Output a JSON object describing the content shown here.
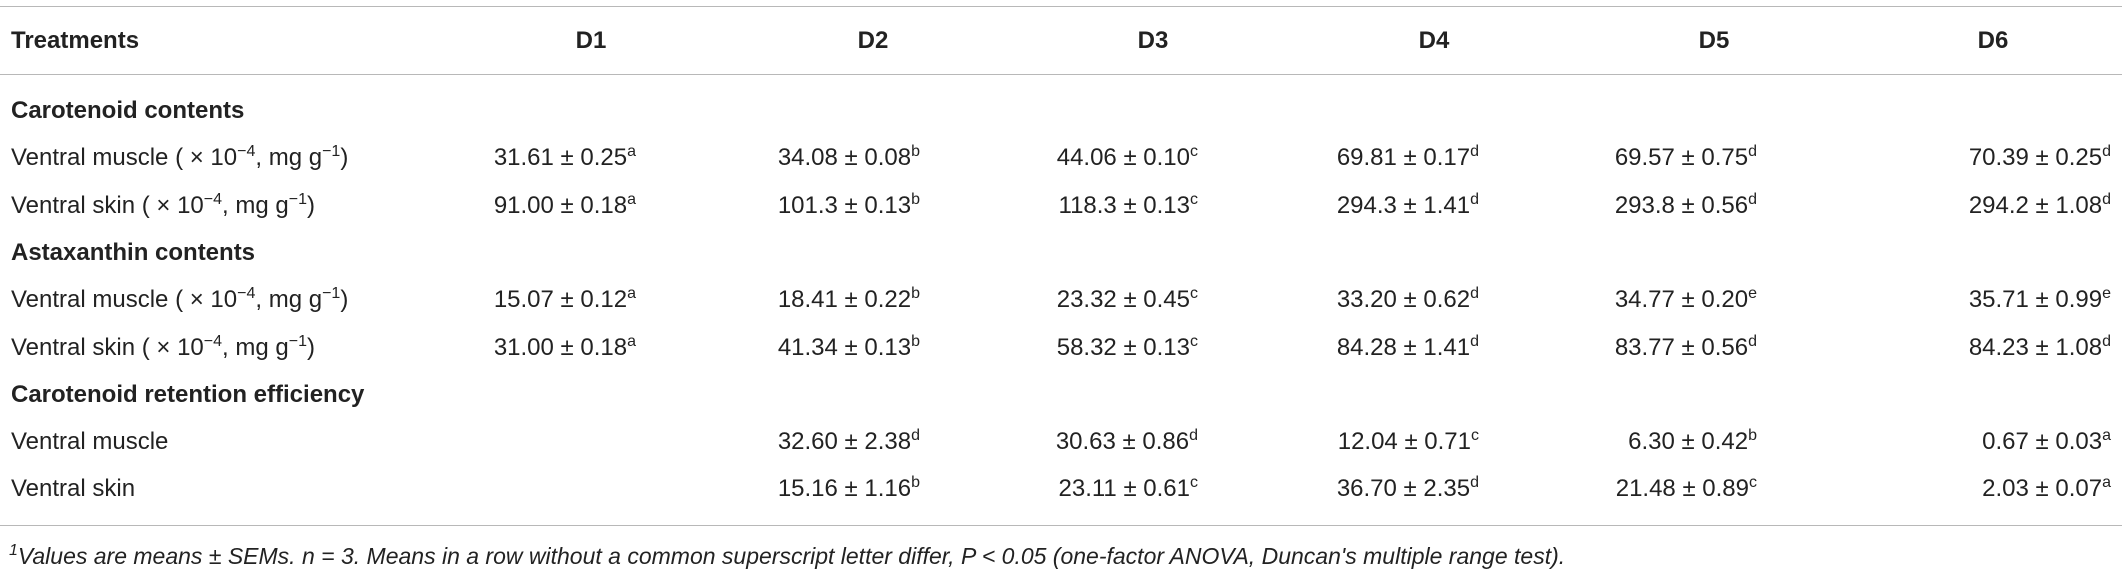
{
  "table": {
    "columns": [
      "Treatments",
      "D1",
      "D2",
      "D3",
      "D4",
      "D5",
      "D6"
    ],
    "sections": [
      {
        "title": "Carotenoid contents",
        "rows": [
          {
            "label": [
              {
                "t": "Ventral muscle ( × 10"
              },
              {
                "sup": "−4"
              },
              {
                "t": ", mg g"
              },
              {
                "sup": "−1"
              },
              {
                "t": ")"
              }
            ],
            "cells": [
              {
                "text": "31.61 ± 0.25",
                "sup": "a"
              },
              {
                "text": "34.08 ± 0.08",
                "sup": "b"
              },
              {
                "text": "44.06 ± 0.10",
                "sup": "c"
              },
              {
                "text": "69.81 ± 0.17",
                "sup": "d"
              },
              {
                "text": "69.57 ± 0.75",
                "sup": "d"
              },
              {
                "text": "70.39 ± 0.25",
                "sup": "d"
              }
            ]
          },
          {
            "label": [
              {
                "t": "Ventral skin ( × 10"
              },
              {
                "sup": "−4"
              },
              {
                "t": ", mg g"
              },
              {
                "sup": "−1"
              },
              {
                "t": ")"
              }
            ],
            "cells": [
              {
                "text": "91.00 ± 0.18",
                "sup": "a"
              },
              {
                "text": "101.3 ± 0.13",
                "sup": "b"
              },
              {
                "text": "118.3 ± 0.13",
                "sup": "c"
              },
              {
                "text": "294.3 ± 1.41",
                "sup": "d"
              },
              {
                "text": "293.8 ± 0.56",
                "sup": "d"
              },
              {
                "text": "294.2 ± 1.08",
                "sup": "d"
              }
            ]
          }
        ]
      },
      {
        "title": "Astaxanthin contents",
        "rows": [
          {
            "label": [
              {
                "t": "Ventral muscle ( × 10"
              },
              {
                "sup": "−4"
              },
              {
                "t": ", mg g"
              },
              {
                "sup": "−1"
              },
              {
                "t": ")"
              }
            ],
            "cells": [
              {
                "text": "15.07 ± 0.12",
                "sup": "a"
              },
              {
                "text": "18.41 ± 0.22",
                "sup": "b"
              },
              {
                "text": "23.32 ± 0.45",
                "sup": "c"
              },
              {
                "text": "33.20 ± 0.62",
                "sup": "d"
              },
              {
                "text": "34.77 ± 0.20",
                "sup": "e"
              },
              {
                "text": "35.71 ± 0.99",
                "sup": "e"
              }
            ]
          },
          {
            "label": [
              {
                "t": "Ventral skin ( × 10"
              },
              {
                "sup": "−4"
              },
              {
                "t": ", mg g"
              },
              {
                "sup": "−1"
              },
              {
                "t": ")"
              }
            ],
            "cells": [
              {
                "text": "31.00 ± 0.18",
                "sup": "a"
              },
              {
                "text": "41.34 ± 0.13",
                "sup": "b"
              },
              {
                "text": "58.32 ± 0.13",
                "sup": "c"
              },
              {
                "text": "84.28 ± 1.41",
                "sup": "d"
              },
              {
                "text": "83.77 ± 0.56",
                "sup": "d"
              },
              {
                "text": "84.23 ± 1.08",
                "sup": "d"
              }
            ]
          }
        ]
      },
      {
        "title": "Carotenoid retention efficiency",
        "rows": [
          {
            "label": [
              {
                "t": "Ventral muscle"
              }
            ],
            "cells": [
              null,
              {
                "text": "32.60 ± 2.38",
                "sup": "d"
              },
              {
                "text": "30.63 ± 0.86",
                "sup": "d"
              },
              {
                "text": "12.04 ± 0.71",
                "sup": "c"
              },
              {
                "text": "6.30 ± 0.42",
                "sup": "b"
              },
              {
                "text": "0.67 ± 0.03",
                "sup": "a"
              }
            ]
          },
          {
            "label": [
              {
                "t": "Ventral skin"
              }
            ],
            "cells": [
              null,
              {
                "text": "15.16 ± 1.16",
                "sup": "b"
              },
              {
                "text": "23.11 ± 0.61",
                "sup": "c"
              },
              {
                "text": "36.70 ± 2.35",
                "sup": "d"
              },
              {
                "text": "21.48 ± 0.89",
                "sup": "c"
              },
              {
                "text": "2.03 ± 0.07",
                "sup": "a"
              }
            ]
          }
        ]
      }
    ],
    "footnote": {
      "sup": "1",
      "text": "Values are means ± SEMs. n = 3. Means in a row without a common superscript letter differ, P < 0.05 (one-factor ANOVA, Duncan's multiple range test)."
    }
  }
}
